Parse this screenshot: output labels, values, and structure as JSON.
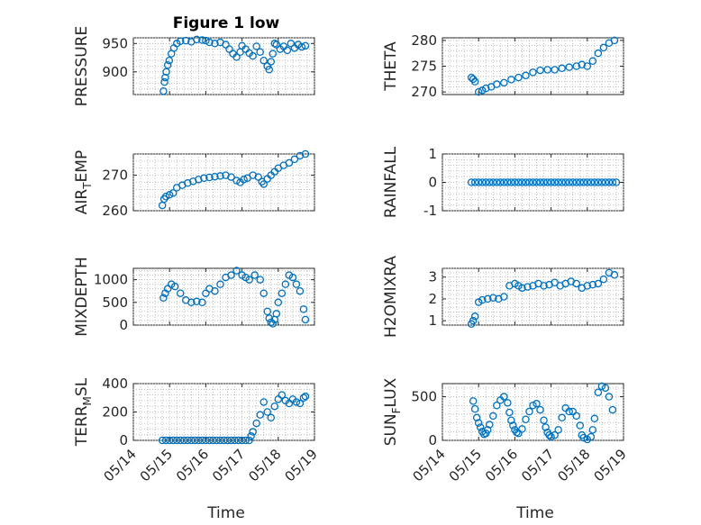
{
  "figure": {
    "title": "Figure 1 low"
  },
  "chart_data": [
    {
      "type": "scatter",
      "id": "pressure",
      "ylabel": "PRESSURE",
      "title": "Figure 1 low",
      "xlim": [
        0,
        5
      ],
      "ylim": [
        860,
        960
      ],
      "yticks": [
        900,
        950
      ],
      "ytick_labels": [
        "900",
        "950"
      ],
      "x": [
        0.83,
        0.86,
        0.88,
        0.91,
        0.95,
        0.99,
        1.05,
        1.12,
        1.2,
        1.3,
        1.45,
        1.6,
        1.75,
        1.9,
        2.0,
        2.1,
        2.25,
        2.4,
        2.55,
        2.65,
        2.75,
        2.85,
        2.95,
        3.0,
        3.1,
        3.2,
        3.3,
        3.4,
        3.5,
        3.6,
        3.7,
        3.75,
        3.8,
        3.85,
        3.9,
        3.95,
        4.05,
        4.15,
        4.25,
        4.35,
        4.45,
        4.55,
        4.65,
        4.75
      ],
      "y": [
        866,
        882,
        890,
        900,
        912,
        920,
        932,
        942,
        950,
        954,
        955,
        953,
        957,
        956,
        955,
        952,
        950,
        952,
        948,
        940,
        932,
        926,
        935,
        946,
        940,
        933,
        928,
        945,
        935,
        920,
        910,
        904,
        918,
        932,
        950,
        948,
        940,
        945,
        938,
        950,
        942,
        948,
        944,
        946
      ]
    },
    {
      "type": "scatter",
      "id": "theta",
      "ylabel": "THETA",
      "xlim": [
        0,
        5
      ],
      "ylim": [
        269.5,
        280.5
      ],
      "yticks": [
        270,
        275,
        280
      ],
      "ytick_labels": [
        "270",
        "275",
        "280"
      ],
      "x": [
        0.8,
        0.85,
        0.9,
        1.0,
        1.1,
        1.2,
        1.35,
        1.5,
        1.7,
        1.9,
        2.1,
        2.3,
        2.5,
        2.7,
        2.9,
        3.1,
        3.3,
        3.5,
        3.7,
        3.85,
        4.0,
        4.15,
        4.3,
        4.45,
        4.6,
        4.75
      ],
      "y": [
        272.8,
        272.5,
        272.0,
        270.0,
        270.3,
        270.7,
        271.0,
        271.5,
        271.8,
        272.4,
        272.8,
        273.2,
        273.8,
        274.2,
        274.3,
        274.3,
        274.6,
        274.8,
        275.0,
        275.3,
        275.0,
        276.0,
        277.5,
        278.6,
        279.5,
        280.0
      ]
    },
    {
      "type": "scatter",
      "id": "airtemp",
      "ylabel": "AIR_TEMP",
      "xlim": [
        0,
        5
      ],
      "ylim": [
        260,
        276
      ],
      "yticks": [
        260,
        270
      ],
      "ytick_labels": [
        "260",
        "270"
      ],
      "x": [
        0.8,
        0.85,
        0.9,
        1.0,
        1.1,
        1.2,
        1.35,
        1.5,
        1.65,
        1.8,
        1.95,
        2.1,
        2.25,
        2.4,
        2.55,
        2.7,
        2.85,
        2.95,
        3.05,
        3.15,
        3.3,
        3.45,
        3.55,
        3.6,
        3.7,
        3.8,
        3.9,
        4.0,
        4.15,
        4.3,
        4.45,
        4.6,
        4.75
      ],
      "y": [
        261.5,
        263.3,
        264.0,
        264.5,
        265.0,
        266.5,
        267.2,
        267.8,
        268.3,
        268.8,
        269.2,
        269.4,
        269.6,
        269.8,
        270.0,
        269.5,
        268.5,
        268.0,
        268.8,
        269.2,
        270.0,
        269.5,
        268.2,
        267.5,
        269.0,
        270.0,
        271.0,
        272.0,
        272.8,
        273.5,
        274.5,
        275.5,
        276.0
      ]
    },
    {
      "type": "scatter",
      "id": "rainfall",
      "ylabel": "RAINFALL",
      "xlim": [
        0,
        5
      ],
      "ylim": [
        -1,
        1
      ],
      "yticks": [
        -1,
        0,
        1
      ],
      "ytick_labels": [
        "-1",
        "0",
        "1"
      ],
      "x": [
        0.8,
        0.9,
        1.0,
        1.1,
        1.2,
        1.3,
        1.4,
        1.5,
        1.6,
        1.7,
        1.8,
        1.9,
        2.0,
        2.1,
        2.2,
        2.3,
        2.4,
        2.5,
        2.6,
        2.7,
        2.8,
        2.9,
        3.0,
        3.1,
        3.2,
        3.3,
        3.4,
        3.5,
        3.6,
        3.7,
        3.8,
        3.9,
        4.0,
        4.1,
        4.2,
        4.3,
        4.4,
        4.5,
        4.6,
        4.7,
        4.8
      ],
      "y": [
        0,
        0,
        0,
        0,
        0,
        0,
        0,
        0,
        0,
        0,
        0,
        0,
        0,
        0,
        0,
        0,
        0,
        0,
        0,
        0,
        0,
        0,
        0,
        0,
        0,
        0,
        0,
        0,
        0,
        0,
        0,
        0,
        0,
        0,
        0,
        0,
        0,
        0,
        0,
        0,
        0
      ]
    },
    {
      "type": "scatter",
      "id": "mixdepth",
      "ylabel": "MIXDEPTH",
      "xlim": [
        0,
        5
      ],
      "ylim": [
        0,
        1250
      ],
      "yticks": [
        0,
        500,
        1000
      ],
      "ytick_labels": [
        "0",
        "500",
        "1000"
      ],
      "x": [
        0.83,
        0.88,
        0.95,
        1.05,
        1.15,
        1.3,
        1.45,
        1.6,
        1.75,
        1.9,
        2.0,
        2.1,
        2.25,
        2.4,
        2.55,
        2.7,
        2.85,
        3.0,
        3.1,
        3.2,
        3.35,
        3.5,
        3.6,
        3.7,
        3.75,
        3.8,
        3.85,
        3.9,
        3.95,
        4.0,
        4.1,
        4.2,
        4.3,
        4.4,
        4.5,
        4.6,
        4.7,
        4.75
      ],
      "y": [
        600,
        700,
        800,
        900,
        850,
        700,
        550,
        500,
        520,
        500,
        700,
        800,
        750,
        900,
        1050,
        1100,
        1200,
        1100,
        1050,
        1000,
        1100,
        1000,
        700,
        300,
        150,
        60,
        30,
        120,
        250,
        500,
        700,
        900,
        1100,
        1050,
        900,
        750,
        350,
        120
      ]
    },
    {
      "type": "scatter",
      "id": "h2omixra",
      "ylabel": "H2OMIXRA",
      "xlim": [
        0,
        5
      ],
      "ylim": [
        0.8,
        3.4
      ],
      "yticks": [
        1,
        2,
        3
      ],
      "ytick_labels": [
        "1",
        "2",
        "3"
      ],
      "x": [
        0.8,
        0.85,
        0.9,
        1.0,
        1.1,
        1.25,
        1.4,
        1.55,
        1.7,
        1.85,
        2.0,
        2.1,
        2.2,
        2.35,
        2.5,
        2.65,
        2.8,
        2.95,
        3.1,
        3.25,
        3.4,
        3.55,
        3.7,
        3.85,
        4.0,
        4.15,
        4.3,
        4.45,
        4.6,
        4.75
      ],
      "y": [
        0.85,
        1.0,
        1.2,
        1.85,
        1.95,
        2.0,
        2.05,
        2.0,
        2.1,
        2.6,
        2.7,
        2.6,
        2.5,
        2.55,
        2.6,
        2.7,
        2.6,
        2.65,
        2.75,
        2.6,
        2.7,
        2.8,
        2.7,
        2.5,
        2.6,
        2.65,
        2.7,
        2.9,
        3.2,
        3.1
      ]
    },
    {
      "type": "scatter",
      "id": "terrmsl",
      "ylabel": "TERR_MSL",
      "xlim": [
        0,
        5
      ],
      "ylim": [
        0,
        400
      ],
      "yticks": [
        0,
        200,
        400
      ],
      "ytick_labels": [
        "0",
        "200",
        "400"
      ],
      "x": [
        0.8,
        0.9,
        1.0,
        1.1,
        1.2,
        1.3,
        1.4,
        1.5,
        1.6,
        1.7,
        1.8,
        1.9,
        2.0,
        2.1,
        2.2,
        2.3,
        2.4,
        2.5,
        2.6,
        2.7,
        2.8,
        2.9,
        3.0,
        3.1,
        3.2,
        3.25,
        3.3,
        3.4,
        3.5,
        3.6,
        3.7,
        3.8,
        3.9,
        4.0,
        4.1,
        4.2,
        4.3,
        4.4,
        4.5,
        4.6,
        4.7,
        4.75
      ],
      "y": [
        0,
        0,
        0,
        0,
        0,
        0,
        0,
        0,
        0,
        0,
        0,
        0,
        0,
        0,
        0,
        0,
        0,
        0,
        0,
        0,
        0,
        0,
        0,
        0,
        0,
        30,
        60,
        120,
        180,
        270,
        200,
        160,
        240,
        290,
        320,
        280,
        260,
        290,
        270,
        260,
        300,
        310
      ]
    },
    {
      "type": "scatter",
      "id": "sunflux",
      "ylabel": "SUN_FLUX",
      "xlim": [
        0,
        5
      ],
      "ylim": [
        0,
        650
      ],
      "yticks": [
        0,
        500
      ],
      "ytick_labels": [
        "0",
        "500"
      ],
      "x": [
        0.85,
        0.9,
        0.95,
        1.0,
        1.05,
        1.1,
        1.15,
        1.2,
        1.25,
        1.3,
        1.4,
        1.5,
        1.6,
        1.7,
        1.8,
        1.85,
        1.9,
        1.95,
        2.0,
        2.05,
        2.1,
        2.2,
        2.3,
        2.4,
        2.5,
        2.6,
        2.7,
        2.8,
        2.85,
        2.9,
        2.95,
        3.0,
        3.1,
        3.2,
        3.3,
        3.4,
        3.5,
        3.6,
        3.7,
        3.8,
        3.85,
        3.9,
        4.0,
        4.1,
        4.15,
        4.2,
        4.3,
        4.4,
        4.5,
        4.6,
        4.7
      ],
      "y": [
        450,
        360,
        260,
        200,
        150,
        100,
        70,
        80,
        120,
        180,
        280,
        400,
        460,
        500,
        430,
        320,
        230,
        170,
        120,
        90,
        80,
        130,
        240,
        330,
        400,
        420,
        350,
        230,
        150,
        90,
        60,
        40,
        60,
        120,
        260,
        370,
        330,
        330,
        280,
        170,
        60,
        30,
        10,
        40,
        120,
        250,
        550,
        620,
        600,
        500,
        350
      ]
    }
  ],
  "xaxis": {
    "label": "Time",
    "tick_labels": [
      "05/14",
      "05/15",
      "05/16",
      "05/17",
      "05/18",
      "05/19"
    ]
  },
  "colors": {
    "marker": "#0072bd",
    "axis": "#262626",
    "grid": "#b0b0b0"
  }
}
